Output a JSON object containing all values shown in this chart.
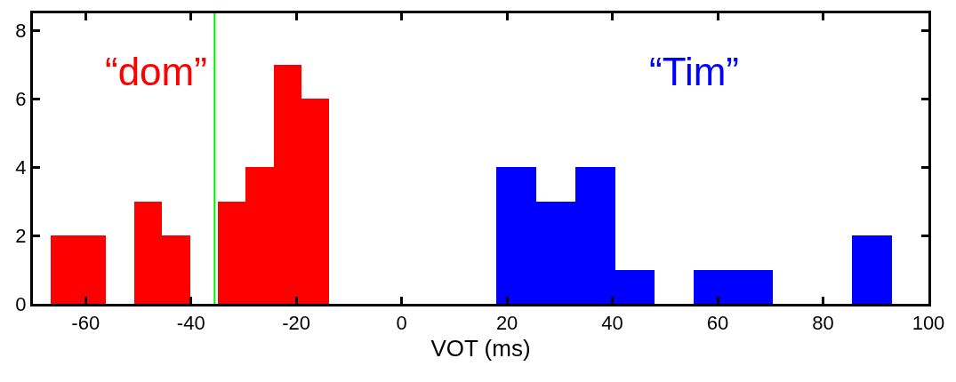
{
  "chart_data": {
    "type": "histogram",
    "xlabel": "VOT (ms)",
    "bins": [
      -66.7,
      -61.4,
      -56.1,
      -50.8,
      -45.5,
      -40.2,
      -34.9,
      -29.6,
      -24.3,
      -19.0,
      -13.7,
      18,
      25.5,
      33,
      40.5,
      48,
      55.5,
      63,
      70.5,
      85.5,
      93
    ],
    "series": [
      {
        "name": "“dom”",
        "color": "#ff0000",
        "values": [
          2,
          2,
          0,
          3,
          2,
          0,
          3,
          4,
          7,
          6,
          null,
          null,
          null,
          null,
          null,
          null,
          null,
          null,
          null,
          null
        ]
      },
      {
        "name": "“Tim”",
        "color": "#0000ff",
        "values": [
          null,
          null,
          null,
          null,
          null,
          null,
          null,
          null,
          null,
          null,
          null,
          4,
          3,
          4,
          1,
          0,
          1,
          1,
          0,
          2
        ]
      }
    ],
    "xlim": [
      -70,
      100
    ],
    "xticks": [
      -60,
      -40,
      -20,
      0,
      20,
      40,
      60,
      80,
      100
    ],
    "ylim": [
      0,
      8.5
    ],
    "yticks": [
      0,
      2,
      4,
      6,
      8
    ],
    "ref_lines": [
      {
        "axis": "x",
        "value": -35.5,
        "color": "#00ee00"
      }
    ],
    "legend": false
  }
}
